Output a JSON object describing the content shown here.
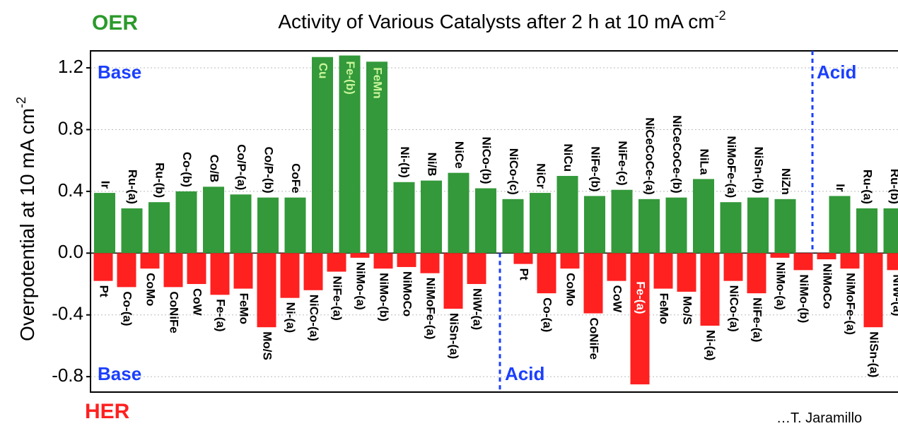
{
  "chart_data": {
    "type": "bar",
    "title": "Activity of Various Catalysts after 2 h at 10 mA cm",
    "title_sup": "-2",
    "y_label": "Overpotential at 10 mA cm",
    "y_label_sup": "-2",
    "ylim": [
      -0.9,
      1.31
    ],
    "yticks": [
      {
        "value": -0.8,
        "label": "-0.8"
      },
      {
        "value": -0.4,
        "label": "-0.4"
      },
      {
        "value": 0,
        "label": "0.0"
      },
      0.4,
      0.8,
      1.2
    ],
    "grid": true,
    "annotations": {
      "oer": "OER",
      "her": "HER",
      "base_top": "Base",
      "acid_top": "Acid",
      "base_bottom": "Base",
      "acid_bottom": "Acid",
      "credit": "…T. Jaramillo"
    },
    "series": [
      {
        "name": "OER",
        "color": "#33993a",
        "categories": [
          "Ir",
          "Ru-(a)",
          "Ru-(b)",
          "Co-(b)",
          "Co/B",
          "Co/P-(a)",
          "Co/P-(b)",
          "CoFe",
          "Cu",
          "Fe-(b)",
          "FeMn",
          "Ni-(b)",
          "Ni/B",
          "NiCe",
          "NiCo-(b)",
          "NiCo-(c)",
          "NiCr",
          "NiCu",
          "NiFe-(b)",
          "NiFe-(c)",
          "NiCeCoCe-(a)",
          "NiCeCoCe-(b)",
          "NiLa",
          "NiMoFe-(a)",
          "NiSn-(b)",
          "NiZn",
          null,
          "Ir",
          "Ru-(a)",
          "Ru-(b)"
        ],
        "values": [
          0.39,
          0.29,
          0.33,
          0.4,
          0.43,
          0.38,
          0.36,
          0.36,
          1.27,
          1.28,
          1.24,
          0.46,
          0.47,
          0.52,
          0.42,
          0.35,
          0.39,
          0.5,
          0.37,
          0.41,
          0.35,
          0.36,
          0.48,
          0.33,
          0.36,
          0.35,
          null,
          0.37,
          0.29,
          0.29
        ]
      },
      {
        "name": "HER",
        "color": "#ff2020",
        "categories": [
          "Pt",
          "Co-(a)",
          "CoMo",
          "CoNiFe",
          "CoW",
          "Fe-(a)",
          "FeMo",
          "Mo/S",
          "Ni-(a)",
          "NiCo-(a)",
          "NiFe-(a)",
          "NiMo-(a)",
          "NiMo-(b)",
          "NiMoCo",
          "NiMoFe-(a)",
          "NiSn-(a)",
          "NiW-(a)",
          null,
          "Pt",
          "Co-(a)",
          "CoMo",
          "CoNiFe",
          "CoW",
          "Fe-(a)",
          "FeMo",
          "Mo/S",
          "Ni-(a)",
          "NiCo-(a)",
          "NiFe-(a)",
          "NiMo-(a)",
          "NiMo-(b)",
          "NiMoCo",
          "NiMoFe-(a)",
          "NiSn-(a)",
          "NiW-(a)"
        ],
        "values": [
          -0.18,
          -0.22,
          -0.1,
          -0.22,
          -0.2,
          -0.27,
          -0.23,
          -0.48,
          -0.29,
          -0.24,
          -0.12,
          -0.03,
          -0.1,
          -0.09,
          -0.13,
          -0.36,
          -0.2,
          null,
          -0.07,
          -0.26,
          -0.1,
          -0.39,
          -0.18,
          -0.85,
          -0.23,
          -0.25,
          -0.47,
          -0.18,
          -0.26,
          -0.03,
          -0.11,
          -0.04,
          -0.1,
          -0.48,
          -0.11
        ]
      }
    ]
  }
}
